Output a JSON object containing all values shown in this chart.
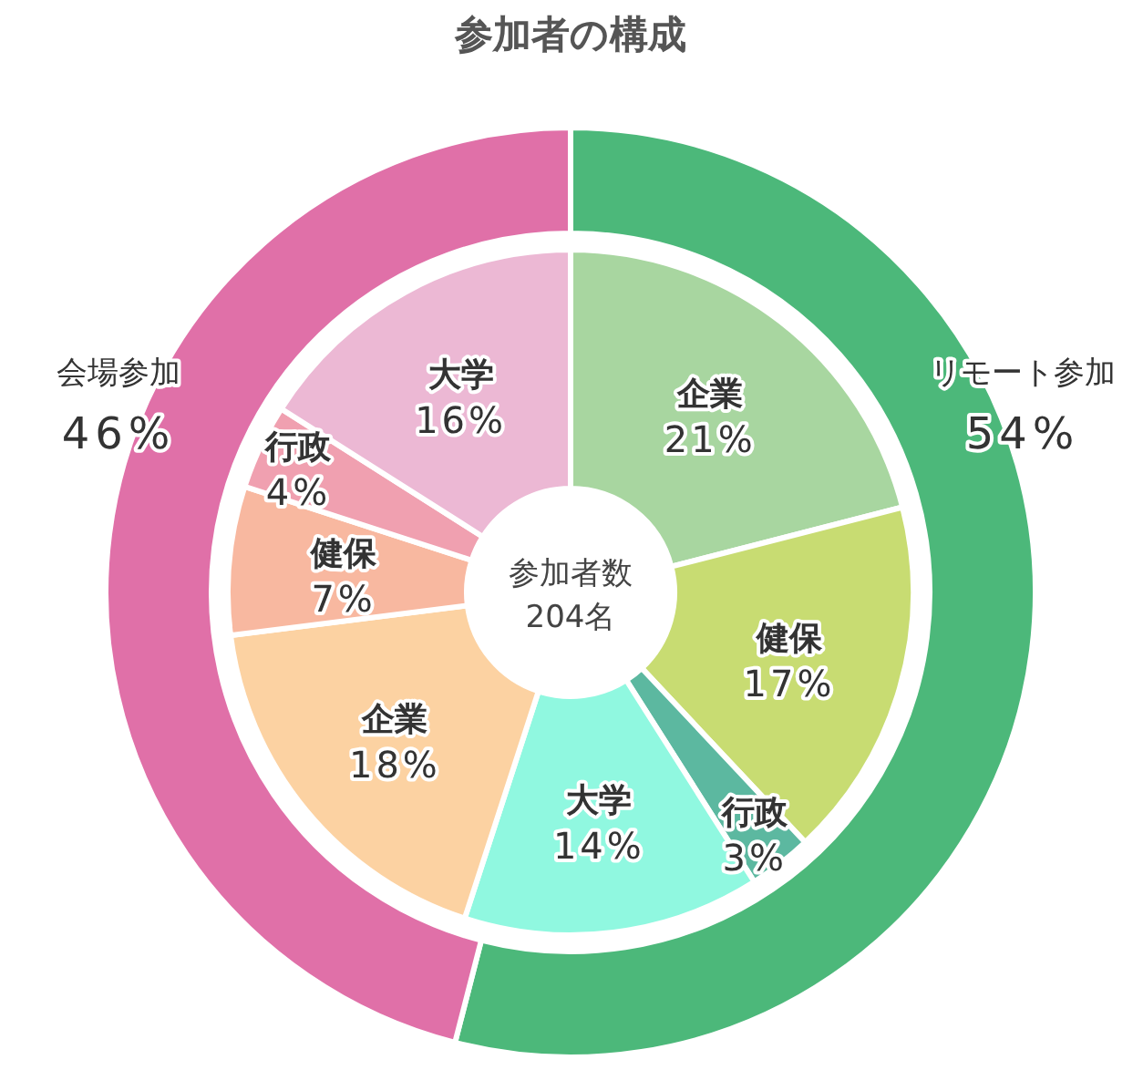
{
  "chart_data": [
    {
      "type": "donut",
      "title": "参加者の構成",
      "categories": [
        "リモート参加",
        "会場参加"
      ],
      "values": [
        54,
        46
      ],
      "value_labels": [
        "54%",
        "46%"
      ],
      "colors": [
        "#4cb87a",
        "#e070a8"
      ]
    },
    {
      "type": "donut",
      "categories": [
        "企業",
        "健保",
        "行政",
        "大学",
        "企業",
        "健保",
        "行政",
        "大学"
      ],
      "values": [
        21,
        17,
        3,
        14,
        18,
        7,
        4,
        16
      ],
      "value_labels": [
        "21%",
        "17%",
        "3%",
        "14%",
        "18%",
        "7%",
        "4%",
        "16%"
      ],
      "colors": [
        "#a8d6a0",
        "#c8dc72",
        "#5cb8a0",
        "#90f8e0",
        "#fcd2a2",
        "#f8b8a0",
        "#f0a0b0",
        "#ecb8d4"
      ],
      "annotations": [
        "参加者数",
        "204名"
      ]
    }
  ]
}
